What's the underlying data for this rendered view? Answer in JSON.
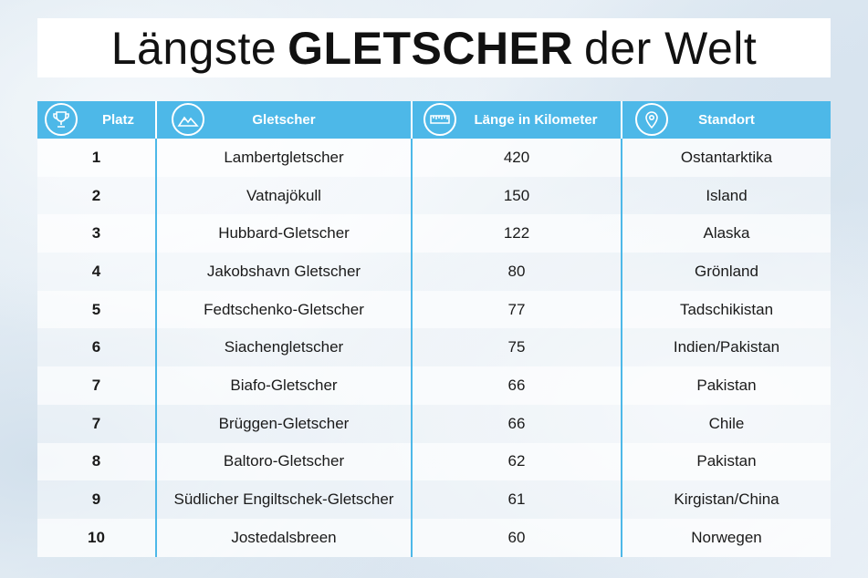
{
  "title": {
    "prefix": "Längste",
    "bold": "GLETSCHER",
    "suffix": "der Welt"
  },
  "columns": [
    {
      "label": "Platz",
      "icon": "trophy-icon"
    },
    {
      "label": "Gletscher",
      "icon": "mountain-icon"
    },
    {
      "label": "Länge in Kilometer",
      "icon": "ruler-icon"
    },
    {
      "label": "Standort",
      "icon": "location-pin-icon"
    }
  ],
  "rows": [
    {
      "rank": "1",
      "name": "Lambertgletscher",
      "length": "420",
      "location": "Ostantarktika"
    },
    {
      "rank": "2",
      "name": "Vatnajökull",
      "length": "150",
      "location": "Island"
    },
    {
      "rank": "3",
      "name": "Hubbard-Gletscher",
      "length": "122",
      "location": "Alaska"
    },
    {
      "rank": "4",
      "name": "Jakobshavn Gletscher",
      "length": "80",
      "location": "Grönland"
    },
    {
      "rank": "5",
      "name": "Fedtschenko-Gletscher",
      "length": "77",
      "location": "Tadschikistan"
    },
    {
      "rank": "6",
      "name": "Siachengletscher",
      "length": "75",
      "location": "Indien/Pakistan"
    },
    {
      "rank": "7",
      "name": "Biafo-Gletscher",
      "length": "66",
      "location": "Pakistan"
    },
    {
      "rank": "7",
      "name": "Brüggen-Gletscher",
      "length": "66",
      "location": "Chile"
    },
    {
      "rank": "8",
      "name": "Baltoro-Gletscher",
      "length": "62",
      "location": "Pakistan"
    },
    {
      "rank": "9",
      "name": "Südlicher Engiltschek-Gletscher",
      "length": "61",
      "location": "Kirgistan/China"
    },
    {
      "rank": "10",
      "name": "Jostedalsbreen",
      "length": "60",
      "location": "Norwegen"
    }
  ],
  "colors": {
    "header": "#4db8e8",
    "divider": "#4db8e8"
  }
}
